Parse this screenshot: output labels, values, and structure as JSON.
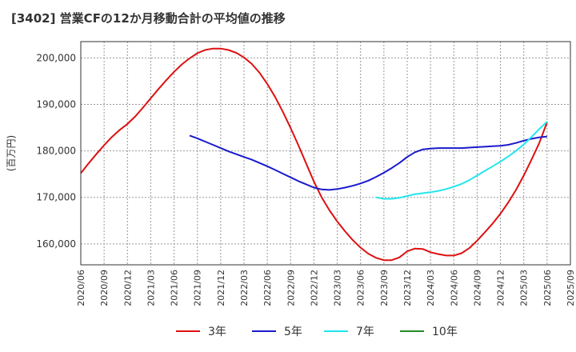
{
  "chart_data": {
    "type": "line",
    "title": "[3402]  営業CFの12か月移動合計の平均値の推移",
    "ylabel": "(百万円)",
    "xlabel": "",
    "ylim": [
      155500,
      203500
    ],
    "yticks": [
      160000,
      170000,
      180000,
      190000,
      200000
    ],
    "ytick_labels": [
      "160,000",
      "170,000",
      "180,000",
      "190,000",
      "200,000"
    ],
    "xlim": [
      "2020-06",
      "2025-09"
    ],
    "xtick_labels": [
      "2020/06",
      "2020/09",
      "2020/12",
      "2021/03",
      "2021/06",
      "2021/09",
      "2021/12",
      "2022/03",
      "2022/06",
      "2022/09",
      "2022/12",
      "2023/03",
      "2023/06",
      "2023/09",
      "2023/12",
      "2024/03",
      "2024/06",
      "2024/09",
      "2024/12",
      "2025/03",
      "2025/06",
      "2025/09"
    ],
    "grid": true,
    "legend_position": "bottom",
    "series": [
      {
        "name": "3年",
        "color": "#dd1111",
        "points": [
          [
            "2020-06",
            175200
          ],
          [
            "2020-07",
            177300
          ],
          [
            "2020-08",
            179300
          ],
          [
            "2020-09",
            181200
          ],
          [
            "2020-10",
            183000
          ],
          [
            "2020-11",
            184500
          ],
          [
            "2020-12",
            185800
          ],
          [
            "2021-01",
            187400
          ],
          [
            "2021-02",
            189300
          ],
          [
            "2021-03",
            191300
          ],
          [
            "2021-04",
            193300
          ],
          [
            "2021-05",
            195200
          ],
          [
            "2021-06",
            197000
          ],
          [
            "2021-07",
            198600
          ],
          [
            "2021-08",
            199900
          ],
          [
            "2021-09",
            201000
          ],
          [
            "2021-10",
            201700
          ],
          [
            "2021-11",
            202000
          ],
          [
            "2021-12",
            202000
          ],
          [
            "2022-01",
            201700
          ],
          [
            "2022-02",
            201100
          ],
          [
            "2022-03",
            200100
          ],
          [
            "2022-04",
            198700
          ],
          [
            "2022-05",
            196800
          ],
          [
            "2022-06",
            194400
          ],
          [
            "2022-07",
            191600
          ],
          [
            "2022-08",
            188400
          ],
          [
            "2022-09",
            184900
          ],
          [
            "2022-10",
            181200
          ],
          [
            "2022-11",
            177300
          ],
          [
            "2022-12",
            173400
          ],
          [
            "2023-01",
            170000
          ],
          [
            "2023-02",
            167200
          ],
          [
            "2023-03",
            164800
          ],
          [
            "2023-04",
            162700
          ],
          [
            "2023-05",
            160800
          ],
          [
            "2023-06",
            159200
          ],
          [
            "2023-07",
            157900
          ],
          [
            "2023-08",
            157000
          ],
          [
            "2023-09",
            156500
          ],
          [
            "2023-10",
            156500
          ],
          [
            "2023-11",
            157100
          ],
          [
            "2023-12",
            158400
          ],
          [
            "2024-01",
            159000
          ],
          [
            "2024-02",
            158900
          ],
          [
            "2024-03",
            158200
          ],
          [
            "2024-04",
            157800
          ],
          [
            "2024-05",
            157500
          ],
          [
            "2024-06",
            157500
          ],
          [
            "2024-07",
            158000
          ],
          [
            "2024-08",
            159100
          ],
          [
            "2024-09",
            160700
          ],
          [
            "2024-10",
            162500
          ],
          [
            "2024-11",
            164400
          ],
          [
            "2024-12",
            166500
          ],
          [
            "2025-01",
            168900
          ],
          [
            "2025-02",
            171600
          ],
          [
            "2025-03",
            174700
          ],
          [
            "2025-04",
            178100
          ],
          [
            "2025-05",
            181700
          ],
          [
            "2025-06",
            186200
          ]
        ]
      },
      {
        "name": "5年",
        "color": "#1a1acc",
        "points": [
          [
            "2021-08",
            183300
          ],
          [
            "2021-09",
            182700
          ],
          [
            "2021-10",
            182000
          ],
          [
            "2021-11",
            181300
          ],
          [
            "2021-12",
            180600
          ],
          [
            "2022-01",
            179900
          ],
          [
            "2022-02",
            179300
          ],
          [
            "2022-03",
            178700
          ],
          [
            "2022-04",
            178100
          ],
          [
            "2022-05",
            177400
          ],
          [
            "2022-06",
            176700
          ],
          [
            "2022-07",
            175900
          ],
          [
            "2022-08",
            175100
          ],
          [
            "2022-09",
            174300
          ],
          [
            "2022-10",
            173500
          ],
          [
            "2022-11",
            172800
          ],
          [
            "2022-12",
            172100
          ],
          [
            "2023-01",
            171700
          ],
          [
            "2023-02",
            171600
          ],
          [
            "2023-03",
            171800
          ],
          [
            "2023-04",
            172100
          ],
          [
            "2023-05",
            172500
          ],
          [
            "2023-06",
            173000
          ],
          [
            "2023-07",
            173600
          ],
          [
            "2023-08",
            174400
          ],
          [
            "2023-09",
            175300
          ],
          [
            "2023-10",
            176300
          ],
          [
            "2023-11",
            177400
          ],
          [
            "2023-12",
            178700
          ],
          [
            "2024-01",
            179700
          ],
          [
            "2024-02",
            180300
          ],
          [
            "2024-03",
            180500
          ],
          [
            "2024-04",
            180600
          ],
          [
            "2024-05",
            180600
          ],
          [
            "2024-06",
            180600
          ],
          [
            "2024-07",
            180600
          ],
          [
            "2024-08",
            180700
          ],
          [
            "2024-09",
            180800
          ],
          [
            "2024-10",
            180900
          ],
          [
            "2024-11",
            181000
          ],
          [
            "2024-12",
            181100
          ],
          [
            "2025-01",
            181300
          ],
          [
            "2025-02",
            181700
          ],
          [
            "2025-03",
            182200
          ],
          [
            "2025-04",
            182600
          ],
          [
            "2025-05",
            182900
          ],
          [
            "2025-06",
            183100
          ]
        ]
      },
      {
        "name": "7年",
        "color": "#22e6ee",
        "points": [
          [
            "2023-08",
            170000
          ],
          [
            "2023-09",
            169700
          ],
          [
            "2023-10",
            169700
          ],
          [
            "2023-11",
            169900
          ],
          [
            "2023-12",
            170300
          ],
          [
            "2024-01",
            170700
          ],
          [
            "2024-02",
            170900
          ],
          [
            "2024-03",
            171100
          ],
          [
            "2024-04",
            171400
          ],
          [
            "2024-05",
            171800
          ],
          [
            "2024-06",
            172300
          ],
          [
            "2024-07",
            172900
          ],
          [
            "2024-08",
            173700
          ],
          [
            "2024-09",
            174700
          ],
          [
            "2024-10",
            175700
          ],
          [
            "2024-11",
            176700
          ],
          [
            "2024-12",
            177700
          ],
          [
            "2025-01",
            178800
          ],
          [
            "2025-02",
            180000
          ],
          [
            "2025-03",
            181400
          ],
          [
            "2025-04",
            183000
          ],
          [
            "2025-05",
            184700
          ],
          [
            "2025-06",
            186300
          ]
        ]
      },
      {
        "name": "10年",
        "color": "#228b22",
        "points": []
      }
    ]
  }
}
